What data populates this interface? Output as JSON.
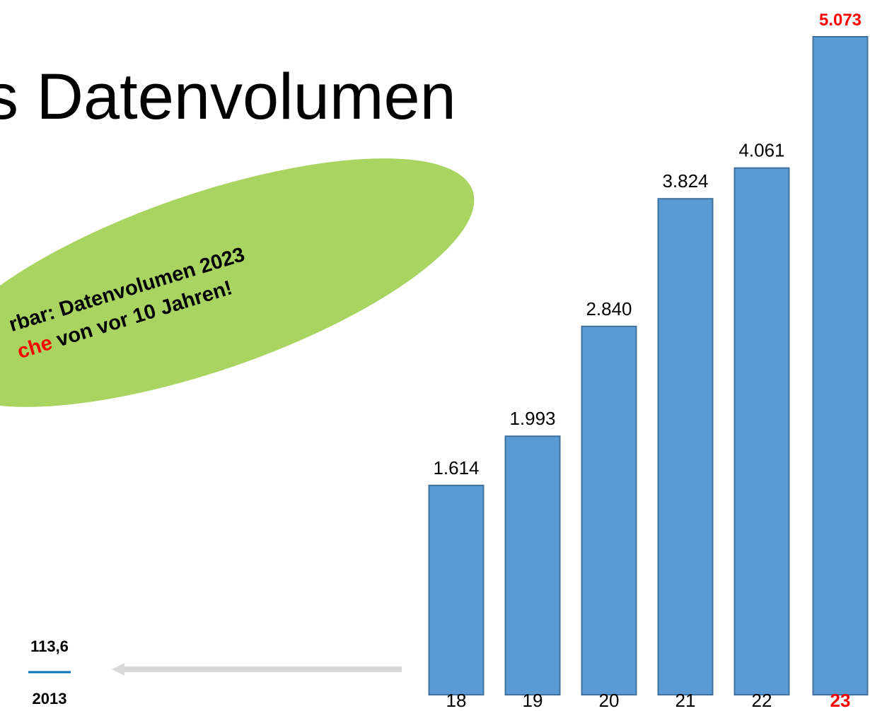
{
  "chart_data": {
    "type": "bar",
    "title": "s Datenvolumen",
    "callout": {
      "line1": "rbar: Datenvolumen 2023",
      "line2_highlight": "che",
      "line2_rest": " von vor 10 Jahren!"
    },
    "categories": [
      "18",
      "19",
      "20",
      "21",
      "22",
      "23"
    ],
    "values": [
      1614,
      1993,
      2840,
      3824,
      4061,
      5073
    ],
    "value_labels": [
      "1.614",
      "1.993",
      "2.840",
      "3.824",
      "4.061",
      "5.073"
    ],
    "color": "#5b9bd5",
    "highlight_color": "#ff0000",
    "highlight_index": 5,
    "ylim": [
      0,
      5100
    ],
    "reference": {
      "label": "2013",
      "value": 113.6,
      "value_label": "113,6",
      "color": "#0070c0"
    }
  }
}
